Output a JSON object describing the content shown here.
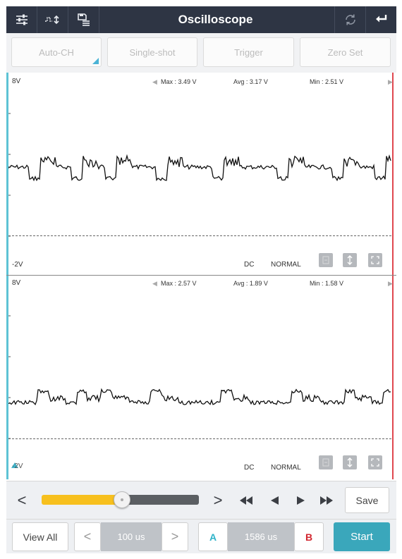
{
  "title_bar": {
    "title": "Oscilloscope",
    "icons": [
      "settings-sliders-icon",
      "waveform-adjust-icon",
      "save-list-icon",
      "refresh-icon",
      "back-arrow-icon"
    ]
  },
  "mode_bar": {
    "auto_ch": "Auto-CH",
    "single_shot": "Single-shot",
    "trigger": "Trigger",
    "zero_set": "Zero Set"
  },
  "channels": [
    {
      "top_label": "8V",
      "bottom_label": "-2V",
      "max": "Max : 3.49 V",
      "avg": "Avg : 3.17 V",
      "min": "Min : 2.51 V",
      "coupling": "DC",
      "mode": "NORMAL"
    },
    {
      "top_label": "8V",
      "bottom_label": "-2V",
      "max": "Max : 2.57 V",
      "avg": "Avg : 1.89 V",
      "min": "Min : 1.58 V",
      "coupling": "DC",
      "mode": "NORMAL"
    }
  ],
  "playback": {
    "prev": "<",
    "next": ">",
    "slider_position": 0.51,
    "save": "Save"
  },
  "bottom_bar": {
    "view_all": "View All",
    "prev": "<",
    "timebase": "100 us",
    "next": ">",
    "cursor_a": "A",
    "cursor_delta": "1586 us",
    "cursor_b": "B",
    "start": "Start"
  },
  "colors": {
    "title_bg": "#2e3544",
    "cursor_a": "#5dc3d5",
    "cursor_b": "#e0474f",
    "slider_fill": "#f7c01e",
    "start_bg": "#3aa7bb"
  }
}
